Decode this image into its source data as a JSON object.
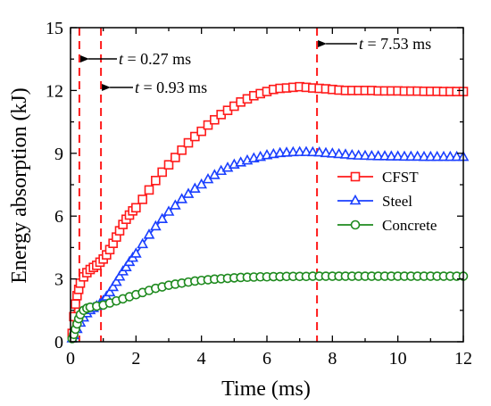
{
  "chart_data": {
    "type": "line",
    "title": "",
    "xlabel": "Time (ms)",
    "ylabel": "Energy absorption (kJ)",
    "xlim": [
      0,
      12
    ],
    "ylim": [
      0,
      15
    ],
    "xticks": [
      0,
      2,
      4,
      6,
      8,
      10,
      12
    ],
    "yticks": [
      0,
      3,
      6,
      9,
      12,
      15
    ],
    "grid": false,
    "legend_position": "right",
    "series": [
      {
        "name": "CFST",
        "color": "#ff1a1a",
        "marker": "square",
        "x": [
          0.05,
          0.1,
          0.15,
          0.2,
          0.25,
          0.3,
          0.4,
          0.5,
          0.6,
          0.7,
          0.8,
          0.9,
          1.0,
          1.1,
          1.2,
          1.3,
          1.4,
          1.5,
          1.6,
          1.7,
          1.8,
          1.9,
          2.0,
          2.2,
          2.4,
          2.6,
          2.8,
          3.0,
          3.2,
          3.4,
          3.6,
          3.8,
          4.0,
          4.2,
          4.4,
          4.6,
          4.8,
          5.0,
          5.2,
          5.4,
          5.6,
          5.8,
          6.0,
          6.2,
          6.4,
          6.6,
          6.8,
          7.0,
          7.2,
          7.4,
          7.6,
          7.8,
          8.0,
          8.2,
          8.4,
          8.6,
          8.8,
          9.0,
          9.2,
          9.4,
          9.6,
          9.8,
          10.0,
          10.2,
          10.4,
          10.6,
          10.8,
          11.0,
          11.2,
          11.4,
          11.6,
          11.8,
          12.0
        ],
        "y": [
          0.4,
          1.2,
          1.8,
          2.2,
          2.5,
          2.8,
          3.1,
          3.3,
          3.45,
          3.55,
          3.65,
          3.8,
          3.95,
          4.15,
          4.4,
          4.7,
          5.0,
          5.3,
          5.6,
          5.85,
          6.05,
          6.25,
          6.4,
          6.8,
          7.25,
          7.7,
          8.1,
          8.45,
          8.8,
          9.15,
          9.5,
          9.8,
          10.05,
          10.35,
          10.6,
          10.85,
          11.05,
          11.25,
          11.45,
          11.6,
          11.75,
          11.85,
          11.95,
          12.05,
          12.1,
          12.12,
          12.15,
          12.18,
          12.15,
          12.12,
          12.1,
          12.08,
          12.05,
          12.02,
          12.0,
          12.0,
          12.0,
          12.0,
          12.0,
          11.98,
          11.98,
          11.98,
          11.98,
          11.97,
          11.97,
          11.97,
          11.96,
          11.96,
          11.96,
          11.95,
          11.95,
          11.95,
          11.95
        ]
      },
      {
        "name": "Steel",
        "color": "#1a3fff",
        "marker": "triangle",
        "x": [
          0.05,
          0.1,
          0.2,
          0.3,
          0.4,
          0.5,
          0.6,
          0.7,
          0.8,
          0.9,
          1.0,
          1.1,
          1.2,
          1.3,
          1.4,
          1.5,
          1.6,
          1.7,
          1.8,
          1.9,
          2.0,
          2.2,
          2.4,
          2.6,
          2.8,
          3.0,
          3.2,
          3.4,
          3.6,
          3.8,
          4.0,
          4.2,
          4.4,
          4.6,
          4.8,
          5.0,
          5.2,
          5.4,
          5.6,
          5.8,
          6.0,
          6.2,
          6.4,
          6.6,
          6.8,
          7.0,
          7.2,
          7.4,
          7.6,
          7.8,
          8.0,
          8.2,
          8.4,
          8.6,
          8.8,
          9.0,
          9.2,
          9.4,
          9.6,
          9.8,
          10.0,
          10.2,
          10.4,
          10.6,
          10.8,
          11.0,
          11.2,
          11.4,
          11.6,
          11.8,
          12.0
        ],
        "y": [
          0.15,
          0.3,
          0.6,
          0.9,
          1.15,
          1.35,
          1.5,
          1.6,
          1.7,
          1.8,
          1.95,
          2.15,
          2.35,
          2.6,
          2.85,
          3.1,
          3.35,
          3.55,
          3.8,
          4.0,
          4.2,
          4.65,
          5.1,
          5.5,
          5.85,
          6.2,
          6.5,
          6.8,
          7.05,
          7.3,
          7.5,
          7.75,
          7.95,
          8.15,
          8.3,
          8.45,
          8.55,
          8.65,
          8.75,
          8.82,
          8.9,
          8.95,
          9.0,
          9.02,
          9.04,
          9.05,
          9.05,
          9.04,
          9.03,
          9.0,
          8.98,
          8.95,
          8.93,
          8.9,
          8.88,
          8.87,
          8.86,
          8.85,
          8.85,
          8.84,
          8.84,
          8.83,
          8.83,
          8.83,
          8.82,
          8.82,
          8.82,
          8.82,
          8.82,
          8.82,
          8.82
        ]
      },
      {
        "name": "Concrete",
        "color": "#1e8a1e",
        "marker": "circle",
        "x": [
          0.05,
          0.1,
          0.15,
          0.2,
          0.25,
          0.3,
          0.4,
          0.5,
          0.6,
          0.8,
          1.0,
          1.2,
          1.4,
          1.6,
          1.8,
          2.0,
          2.2,
          2.4,
          2.6,
          2.8,
          3.0,
          3.2,
          3.4,
          3.6,
          3.8,
          4.0,
          4.2,
          4.4,
          4.6,
          4.8,
          5.0,
          5.2,
          5.4,
          5.6,
          5.8,
          6.0,
          6.2,
          6.4,
          6.6,
          6.8,
          7.0,
          7.2,
          7.4,
          7.6,
          7.8,
          8.0,
          8.2,
          8.4,
          8.6,
          8.8,
          9.0,
          9.2,
          9.4,
          9.6,
          9.8,
          10.0,
          10.2,
          10.4,
          10.6,
          10.8,
          11.0,
          11.2,
          11.4,
          11.6,
          11.8,
          12.0
        ],
        "y": [
          0.15,
          0.35,
          0.6,
          0.85,
          1.1,
          1.3,
          1.5,
          1.6,
          1.65,
          1.7,
          1.75,
          1.85,
          1.95,
          2.05,
          2.15,
          2.25,
          2.35,
          2.45,
          2.55,
          2.62,
          2.7,
          2.75,
          2.8,
          2.85,
          2.9,
          2.93,
          2.96,
          2.99,
          3.01,
          3.03,
          3.05,
          3.07,
          3.08,
          3.09,
          3.1,
          3.1,
          3.11,
          3.11,
          3.12,
          3.12,
          3.12,
          3.12,
          3.13,
          3.13,
          3.13,
          3.13,
          3.13,
          3.13,
          3.13,
          3.13,
          3.13,
          3.13,
          3.13,
          3.13,
          3.13,
          3.13,
          3.13,
          3.13,
          3.13,
          3.13,
          3.13,
          3.13,
          3.13,
          3.13,
          3.13,
          3.13
        ]
      }
    ],
    "vlines": [
      {
        "x": 0.27,
        "label": "t = 0.27 ms",
        "color": "#ff1a1a"
      },
      {
        "x": 0.93,
        "label": "t = 0.93 ms",
        "color": "#ff1a1a"
      },
      {
        "x": 7.53,
        "label": "t = 7.53 ms",
        "color": "#ff1a1a"
      }
    ]
  }
}
